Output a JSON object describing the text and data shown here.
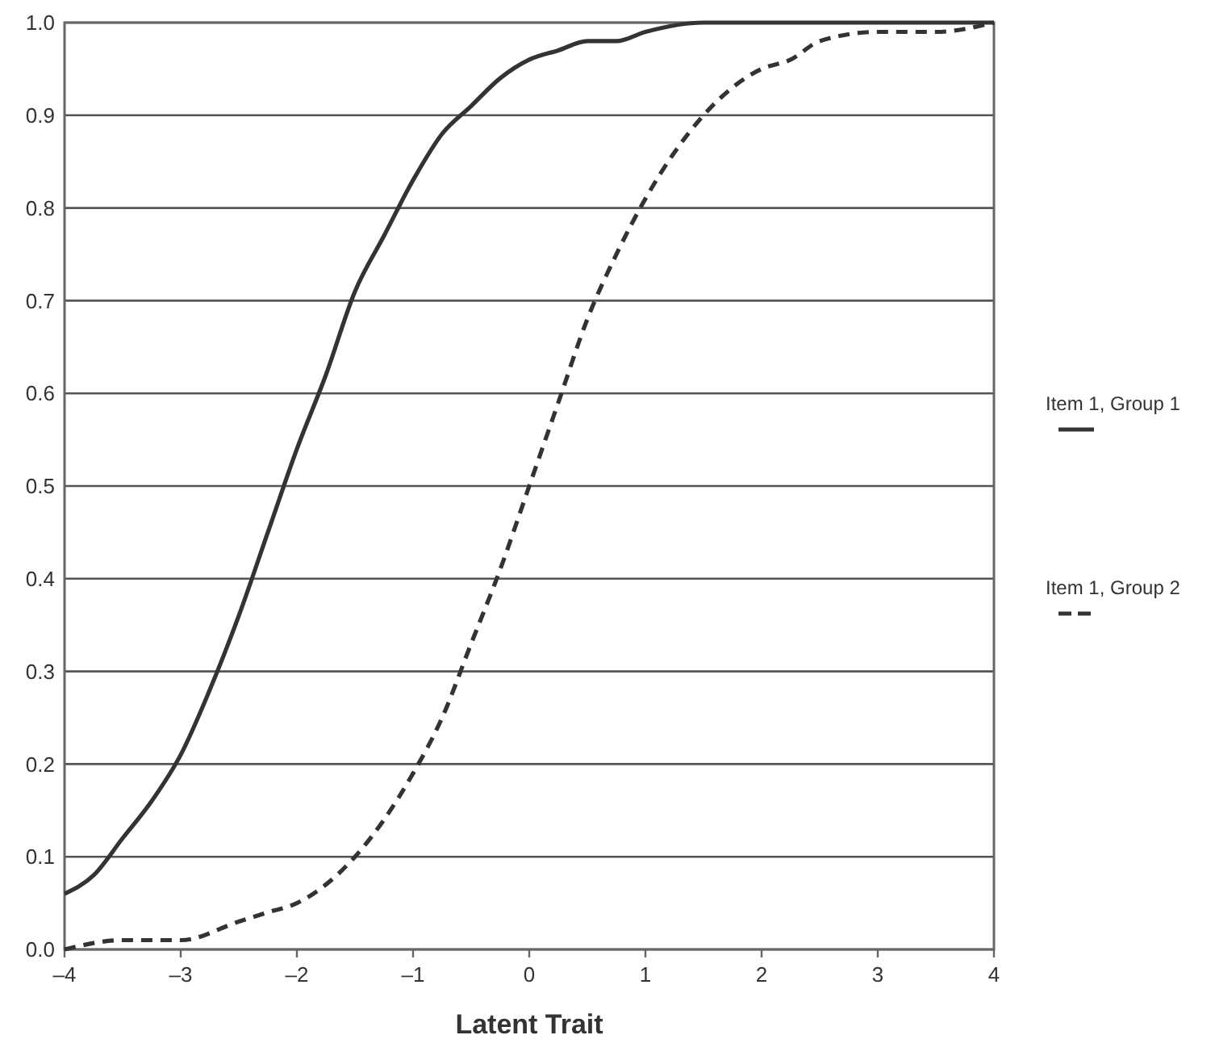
{
  "chart_data": {
    "type": "line",
    "xlabel": "Latent Trait",
    "xlim": [
      -4,
      4
    ],
    "ylim": [
      0,
      1
    ],
    "xticks": [
      {
        "value": -4,
        "label": "–4"
      },
      {
        "value": -3,
        "label": "–3"
      },
      {
        "value": -2,
        "label": "–2"
      },
      {
        "value": -1,
        "label": "–1"
      },
      0,
      1,
      2,
      3,
      4
    ],
    "yticks": [
      {
        "value": 0,
        "label": "0.0"
      },
      {
        "value": 0.1,
        "label": "0.1"
      },
      {
        "value": 0.2,
        "label": "0.2"
      },
      {
        "value": 0.3,
        "label": "0.3"
      },
      {
        "value": 0.4,
        "label": "0.4"
      },
      {
        "value": 0.5,
        "label": "0.5"
      },
      {
        "value": 0.6,
        "label": "0.6"
      },
      {
        "value": 0.7,
        "label": "0.7"
      },
      {
        "value": 0.8,
        "label": "0.8"
      },
      {
        "value": 0.9,
        "label": "0.9"
      },
      {
        "value": 1,
        "label": "1.0"
      }
    ],
    "grid": "y",
    "legend": "right",
    "marker": "none",
    "series": [
      {
        "name": "Item 1, Group 1",
        "color": "#333333",
        "line_style": "solid",
        "x": [
          -4,
          -3.75,
          -3.5,
          -3.25,
          -3,
          -2.75,
          -2.5,
          -2.25,
          -2,
          -1.75,
          -1.5,
          -1.25,
          -1,
          -0.75,
          -0.5,
          -0.25,
          0,
          0.25,
          0.5,
          0.75,
          1,
          1.5,
          2,
          2.5,
          3,
          3.5,
          4
        ],
        "values": [
          0.06,
          0.08,
          0.12,
          0.16,
          0.21,
          0.28,
          0.36,
          0.45,
          0.54,
          0.62,
          0.71,
          0.77,
          0.83,
          0.88,
          0.91,
          0.94,
          0.96,
          0.97,
          0.98,
          0.98,
          0.99,
          1,
          1,
          1,
          1,
          1,
          1
        ]
      },
      {
        "name": "Item 1, Group 2",
        "color": "#333333",
        "line_style": "dashed",
        "x": [
          -4,
          -3.5,
          -3,
          -2.5,
          -2.25,
          -2,
          -1.75,
          -1.5,
          -1.25,
          -1,
          -0.75,
          -0.5,
          -0.25,
          0,
          0.25,
          0.5,
          0.75,
          1,
          1.25,
          1.5,
          1.75,
          2,
          2.25,
          2.5,
          3,
          3.5,
          4
        ],
        "values": [
          0,
          0.01,
          0.01,
          0.03,
          0.04,
          0.05,
          0.07,
          0.1,
          0.14,
          0.19,
          0.25,
          0.33,
          0.41,
          0.5,
          0.59,
          0.68,
          0.75,
          0.81,
          0.86,
          0.9,
          0.93,
          0.95,
          0.96,
          0.98,
          0.99,
          0.99,
          1
        ]
      }
    ]
  }
}
